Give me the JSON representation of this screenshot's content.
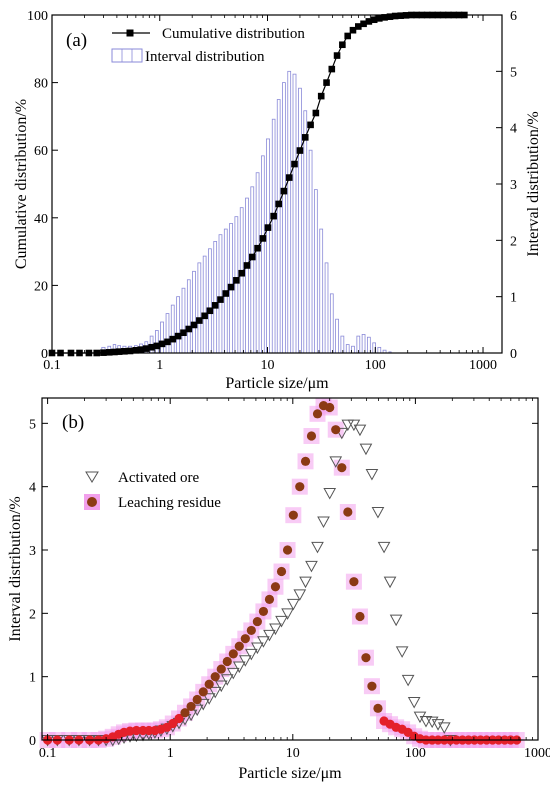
{
  "chart_data": [
    {
      "panel_label": "(a)",
      "type": "bar+line",
      "xlabel": "Particle size/μm",
      "ylabel_left": "Cumulative distribution/%",
      "ylabel_right": "Interval distribution/%",
      "xscale": "log",
      "xlim": [
        0.1,
        1500
      ],
      "xticks": [
        0.1,
        1,
        10,
        100,
        1000
      ],
      "xtick_labels": [
        "0.1",
        "1",
        "10",
        "100",
        "1000"
      ],
      "ylim_left": [
        0,
        100
      ],
      "yticks_left": [
        0,
        20,
        40,
        60,
        80,
        100
      ],
      "ylim_right": [
        0,
        6
      ],
      "yticks_right": [
        0,
        1,
        2,
        3,
        4,
        5,
        6
      ],
      "legend": [
        "Cumulative distribution",
        "Interval  distribution"
      ],
      "legend_position": "top-left",
      "colors": {
        "cumulative": "#000000",
        "interval": "#8a8ad8"
      },
      "interval_distribution": {
        "x": [
          0.1,
          0.12,
          0.15,
          0.18,
          0.22,
          0.26,
          0.3,
          0.34,
          0.38,
          0.42,
          0.47,
          0.53,
          0.6,
          0.67,
          0.75,
          0.84,
          0.94,
          1.05,
          1.18,
          1.32,
          1.48,
          1.66,
          1.86,
          2.08,
          2.33,
          2.61,
          2.92,
          3.27,
          3.66,
          4.1,
          4.59,
          5.14,
          5.76,
          6.45,
          7.22,
          8.09,
          9.06,
          10.1,
          11.4,
          12.7,
          14.2,
          15.9,
          17.8,
          20,
          22.4,
          25.1,
          28.1,
          31.5,
          35.3,
          39.5,
          44.2,
          49.5,
          55.5,
          62.1,
          69.6,
          77.9,
          87.2,
          97.7,
          109,
          122,
          137
        ],
        "y": [
          0,
          0,
          0,
          0,
          0,
          0,
          0.1,
          0.12,
          0.15,
          0.13,
          0.12,
          0.12,
          0.13,
          0.16,
          0.2,
          0.3,
          0.4,
          0.55,
          0.7,
          0.85,
          1.0,
          1.15,
          1.3,
          1.45,
          1.6,
          1.72,
          1.85,
          1.98,
          2.1,
          2.2,
          2.3,
          2.42,
          2.58,
          2.75,
          2.95,
          3.2,
          3.5,
          3.8,
          4.15,
          4.5,
          4.8,
          5.0,
          4.95,
          4.7,
          4.3,
          3.6,
          2.9,
          2.2,
          1.6,
          1.05,
          0.6,
          0.3,
          0.15,
          0.12,
          0.3,
          0.33,
          0.28,
          0.18,
          0.1,
          0.05,
          0.02
        ]
      },
      "cumulative_distribution": {
        "x": [
          0.1,
          0.12,
          0.15,
          0.18,
          0.22,
          0.26,
          0.3,
          0.34,
          0.38,
          0.42,
          0.47,
          0.53,
          0.6,
          0.67,
          0.75,
          0.84,
          0.94,
          1.05,
          1.18,
          1.32,
          1.48,
          1.66,
          1.86,
          2.08,
          2.33,
          2.61,
          2.92,
          3.27,
          3.66,
          4.1,
          4.59,
          5.14,
          5.76,
          6.45,
          7.22,
          8.09,
          9.06,
          10.1,
          11.4,
          12.7,
          14.2,
          15.9,
          17.8,
          20,
          22.4,
          25.1,
          28.1,
          31.5,
          35.3,
          39.5,
          44.2,
          49.5,
          55.5,
          62.1,
          69.6,
          77.9,
          87.2,
          97.7,
          109,
          122,
          137,
          153,
          172,
          193,
          216,
          242,
          271,
          303,
          340,
          381,
          426,
          477,
          535,
          599,
          671
        ],
        "y": [
          0,
          0,
          0,
          0,
          0,
          0,
          0.1,
          0.2,
          0.3,
          0.4,
          0.5,
          0.6,
          0.8,
          1.0,
          1.3,
          1.7,
          2.1,
          2.7,
          3.3,
          4.1,
          5.0,
          6.0,
          7.1,
          8.3,
          9.6,
          11.0,
          12.5,
          14.1,
          15.8,
          17.6,
          19.5,
          21.5,
          23.6,
          25.9,
          28.4,
          31.0,
          33.9,
          37.1,
          40.5,
          44.1,
          47.9,
          51.9,
          55.9,
          59.9,
          63.8,
          67.5,
          71.0,
          76.0,
          80.0,
          84.0,
          88.0,
          91.2,
          93.8,
          95.5,
          96.6,
          97.4,
          98.1,
          98.6,
          99.0,
          99.3,
          99.5,
          99.7,
          99.8,
          99.9,
          100,
          100,
          100,
          100,
          100,
          100,
          100,
          100,
          100,
          100,
          100
        ]
      }
    },
    {
      "panel_label": "(b)",
      "type": "scatter",
      "xlabel": "Particle size/μm",
      "ylabel": "Interval distribution/%",
      "xscale": "log",
      "xlim": [
        0.09,
        1000
      ],
      "xticks": [
        0.1,
        1,
        10,
        100,
        1000
      ],
      "xtick_labels": [
        "0.1",
        "1",
        "10",
        "100",
        "1000"
      ],
      "ylim": [
        0,
        5.4
      ],
      "yticks": [
        0,
        1,
        2,
        3,
        4,
        5
      ],
      "legend_position": "upper-left",
      "series": [
        {
          "name": "Activated ore",
          "marker": "open-triangle-down",
          "color": "#555555",
          "x": [
            0.1,
            0.12,
            0.15,
            0.18,
            0.22,
            0.26,
            0.3,
            0.34,
            0.38,
            0.42,
            0.47,
            0.53,
            0.6,
            0.67,
            0.75,
            0.84,
            0.94,
            1.05,
            1.18,
            1.32,
            1.48,
            1.66,
            1.86,
            2.08,
            2.33,
            2.61,
            2.92,
            3.27,
            3.66,
            4.1,
            4.59,
            5.14,
            5.76,
            6.45,
            7.22,
            8.09,
            9.06,
            10.1,
            11.4,
            12.7,
            14.2,
            15.9,
            17.8,
            20,
            22.4,
            25.1,
            28.1,
            31.5,
            35.3,
            39.5,
            44.2,
            49.5,
            55.5,
            62.1,
            69.6,
            77.9,
            87.2,
            97.7,
            109,
            122,
            137,
            153,
            172,
            193
          ],
          "y": [
            0,
            0,
            0,
            0,
            0,
            0,
            0,
            0,
            0.02,
            0.04,
            0.06,
            0.07,
            0.08,
            0.1,
            0.12,
            0.15,
            0.18,
            0.22,
            0.27,
            0.33,
            0.4,
            0.48,
            0.57,
            0.66,
            0.76,
            0.86,
            0.96,
            1.06,
            1.16,
            1.26,
            1.36,
            1.46,
            1.56,
            1.66,
            1.76,
            1.88,
            2.0,
            2.15,
            2.3,
            2.5,
            2.75,
            3.05,
            3.45,
            3.9,
            4.4,
            4.85,
            4.98,
            4.98,
            4.9,
            4.6,
            4.2,
            3.6,
            3.05,
            2.5,
            1.9,
            1.4,
            0.95,
            0.6,
            0.37,
            0.3,
            0.29,
            0.25,
            0.2,
            0.0
          ]
        },
        {
          "name": "Leaching residue",
          "marker": "filled-circle",
          "color": "#8b3a14",
          "x": [
            0.1,
            0.12,
            0.15,
            0.18,
            0.22,
            0.26,
            0.3,
            0.34,
            0.38,
            0.42,
            0.47,
            0.53,
            0.6,
            0.67,
            0.75,
            0.84,
            0.94,
            1.05,
            1.18,
            1.32,
            1.48,
            1.66,
            1.86,
            2.08,
            2.33,
            2.61,
            2.92,
            3.27,
            3.66,
            4.1,
            4.59,
            5.14,
            5.76,
            6.45,
            7.22,
            8.09,
            9.06,
            10.1,
            11.4,
            12.7,
            14.2,
            15.9,
            17.8,
            20,
            22.4,
            25.1,
            28.1,
            31.5,
            35.3,
            39.5,
            44.2,
            49.5,
            55.5,
            62.1,
            69.6,
            77.9,
            87.2,
            97.7,
            109,
            122,
            137,
            153,
            172,
            193,
            216,
            242,
            271,
            303,
            340,
            381,
            426,
            477,
            535,
            599,
            671
          ],
          "y": [
            0,
            0,
            0,
            0,
            0,
            0,
            0.02,
            0.05,
            0.09,
            0.12,
            0.14,
            0.15,
            0.15,
            0.15,
            0.15,
            0.17,
            0.2,
            0.26,
            0.34,
            0.43,
            0.53,
            0.64,
            0.76,
            0.88,
            1.0,
            1.12,
            1.24,
            1.36,
            1.48,
            1.6,
            1.73,
            1.87,
            2.03,
            2.22,
            2.42,
            2.66,
            3.0,
            3.55,
            4.0,
            4.4,
            4.8,
            5.15,
            5.28,
            5.25,
            4.9,
            4.3,
            3.6,
            2.5,
            1.95,
            1.3,
            0.85,
            0.5,
            0.3,
            0.25,
            0.2,
            0.17,
            0.12,
            0.06,
            0.02,
            0,
            0,
            0,
            0,
            0,
            0,
            0,
            0,
            0,
            0,
            0,
            0,
            0,
            0,
            0,
            0
          ]
        }
      ]
    }
  ]
}
